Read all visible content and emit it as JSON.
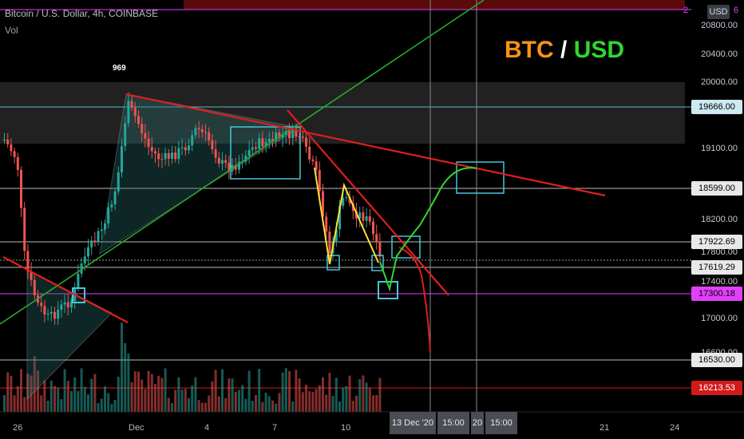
{
  "header": {
    "symbol_line": "Bitcoin / U.S. Dollar, 4h, COINBASE",
    "volume_label": "Vol",
    "currency_button": "USD"
  },
  "title": {
    "base": "BTC",
    "sep": "/",
    "quote": "USD"
  },
  "annotation_969": "969",
  "price_axis": {
    "ticks": [
      "20800.00",
      "20400.00",
      "20000.00",
      "19100.00",
      "18200.00",
      "17800.00",
      "17400.00",
      "17000.00",
      "16600.00"
    ],
    "top_partial": "2",
    "top_partial_right": "6"
  },
  "price_tags": [
    {
      "label": "19666.00",
      "bg": "#cfe9f0",
      "fg": "#000000"
    },
    {
      "label": "18599.00",
      "bg": "#e8e8e8",
      "fg": "#000000"
    },
    {
      "label": "17922.69",
      "bg": "#e8e8e8",
      "fg": "#000000"
    },
    {
      "label": "17619.29",
      "bg": "#e8e8e8",
      "fg": "#000000"
    },
    {
      "label": "17300.18",
      "bg": "#e040fb",
      "fg": "#000000"
    },
    {
      "label": "16530.00",
      "bg": "#e8e8e8",
      "fg": "#000000"
    },
    {
      "label": "16213.53",
      "bg": "#d21a1a",
      "fg": "#ffffff"
    }
  ],
  "time_axis": {
    "ticks": [
      "26",
      "Dec",
      "4",
      "7",
      "10",
      "21",
      "24"
    ],
    "crosshair_labels": [
      "13 Dec '20",
      "15:00",
      "20",
      "15:00"
    ]
  },
  "colors": {
    "up": "#26a69a",
    "down": "#ef5350",
    "resistance": "#e01e1e",
    "trend_up": "#2aa82a",
    "projection": "#2fd82f",
    "zigzag": "#ffe135",
    "box": "#47c6d9",
    "support_magenta": "#e040fb"
  },
  "chart_data": {
    "type": "candlestick",
    "title": "Bitcoin / U.S. Dollar, 4h, COINBASE",
    "xlabel": "",
    "ylabel": "",
    "ylim": [
      16100,
      21000
    ],
    "x_ticks": [
      "26",
      "Dec",
      "4",
      "7",
      "10",
      "13 Dec '20",
      "20",
      "21",
      "24"
    ],
    "horizontal_levels": [
      19666.0,
      18599.0,
      17922.69,
      17619.29,
      17300.18,
      16530.0,
      16213.53
    ],
    "projection_high": 18600,
    "projection_low": 17300
  }
}
